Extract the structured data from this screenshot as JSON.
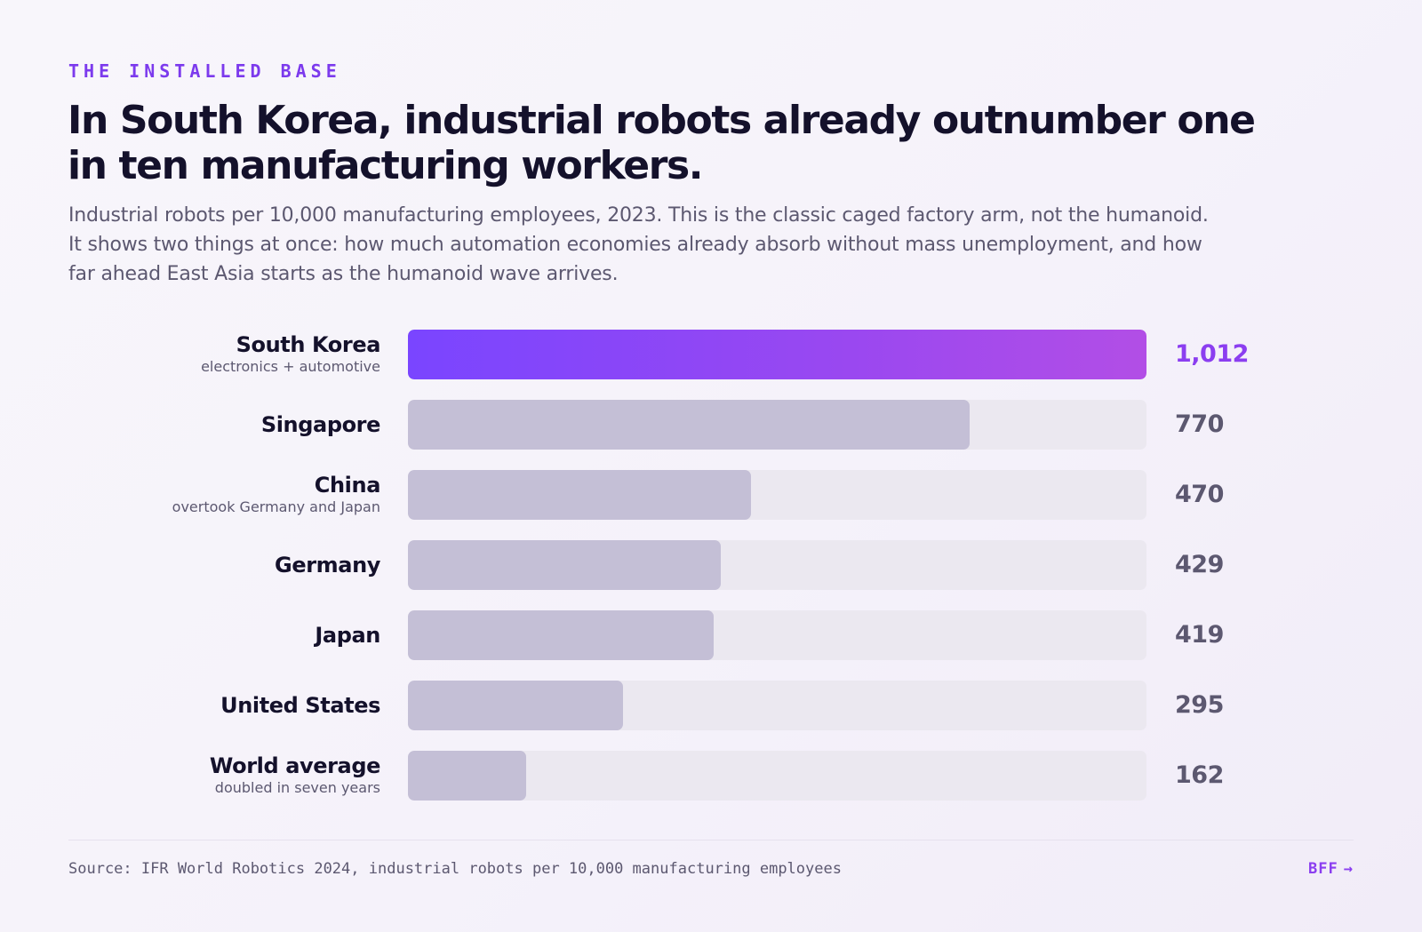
{
  "header": {
    "eyebrow": "THE INSTALLED BASE",
    "title": "In South Korea, industrial robots already outnumber one in ten manufacturing workers.",
    "subtitle": "Industrial robots per 10,000 manufacturing employees, 2023. This is the classic caged factory arm, not the humanoid. It shows two things at once: how much automation economies already absorb without mass unemployment, and how far ahead East Asia starts as the humanoid wave arrives."
  },
  "chart_data": {
    "type": "bar",
    "orientation": "horizontal",
    "categories": [
      "South Korea",
      "Singapore",
      "China",
      "Germany",
      "Japan",
      "United States",
      "World average"
    ],
    "values": [
      1012,
      770,
      470,
      429,
      419,
      295,
      162
    ],
    "value_labels": [
      "1,012",
      "770",
      "470",
      "429",
      "419",
      "295",
      "162"
    ],
    "notes": [
      "electronics + automotive",
      "",
      "overtook Germany and Japan",
      "",
      "",
      "",
      "doubled in seven years"
    ],
    "highlight_index": 0,
    "xlim": [
      0,
      1012
    ],
    "grid": false,
    "title": "",
    "xlabel": "",
    "ylabel": ""
  },
  "colors": {
    "accent": "#8b3ef0",
    "highlight_gradient_start": "#7a45ff",
    "highlight_gradient_end": "#b24ee6",
    "bar_fill": "#c4bfd6",
    "bar_track": "#ebe8f0",
    "title_text": "#14112b",
    "muted_text": "#5c5870"
  },
  "footer": {
    "source": "Source: IFR World Robotics 2024, industrial robots per 10,000 manufacturing employees",
    "link_label": "BFF",
    "link_icon": "arrow-right-icon",
    "link_arrow": "→"
  }
}
